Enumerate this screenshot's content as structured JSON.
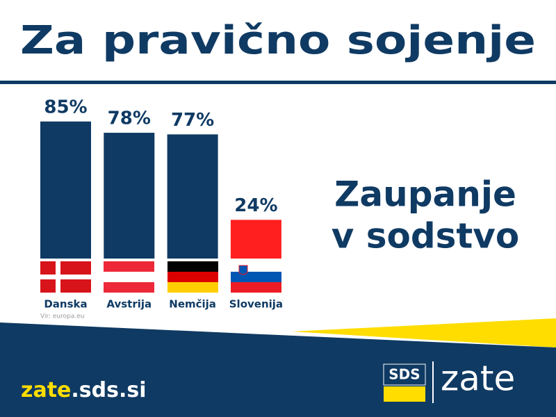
{
  "chart_data": {
    "type": "bar",
    "title": "Za pravično sojenje",
    "annotation_lines": [
      "Zaupanje",
      "v sodstvo"
    ],
    "categories": [
      "Danska",
      "Avstrija",
      "Nemčija",
      "Slovenija"
    ],
    "values": [
      85,
      78,
      77,
      24
    ],
    "value_labels": [
      "85%",
      "78%",
      "77%",
      "24%"
    ],
    "colors": [
      "#0f3a63",
      "#0f3a63",
      "#0f3a63",
      "#ff1f1f"
    ],
    "source": "Vir: europa.eu"
  },
  "footer": {
    "url_parts": [
      "zate",
      ".sds.si"
    ],
    "logo_left": "SDS",
    "logo_right": "zate"
  }
}
